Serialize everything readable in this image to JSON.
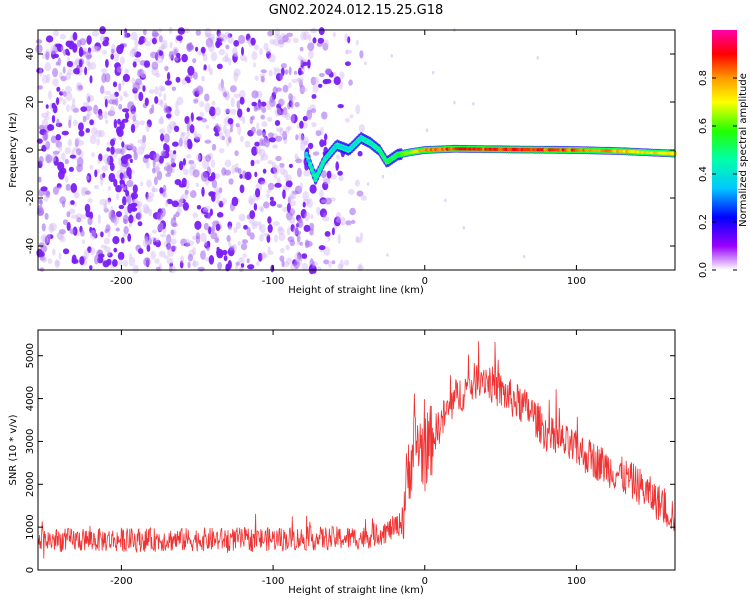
{
  "title": "GN02.2024.012.15.25.G18",
  "chart_data": [
    {
      "type": "heatmap",
      "title": "GN02.2024.012.15.25.G18",
      "xlabel": "Height of straight line (km)",
      "ylabel": "Frequency (Hz)",
      "xlim": [
        -255,
        165
      ],
      "ylim": [
        -50,
        50
      ],
      "xticks": [
        -200,
        -100,
        0,
        100
      ],
      "yticks": [
        -40,
        -20,
        0,
        20,
        40
      ],
      "colorbar": {
        "label": "Normalized spectral amplitude",
        "range": [
          0,
          1
        ],
        "ticks": [
          "0.0",
          "0.2",
          "0.4",
          "0.6",
          "0.8"
        ],
        "stops": [
          "#ffffff",
          "#8800ff",
          "#0000ff",
          "#00ffff",
          "#00ff00",
          "#ffff00",
          "#ff9900",
          "#ff0000",
          "#ff00cc"
        ]
      },
      "noise_region_x": [
        -255,
        -35
      ],
      "noise_amplitude": 0.22,
      "signal_ridge": [
        {
          "x": -78,
          "y": -2,
          "amp": 0.35
        },
        {
          "x": -72,
          "y": -12,
          "amp": 0.45
        },
        {
          "x": -66,
          "y": -4,
          "amp": 0.45
        },
        {
          "x": -58,
          "y": 2,
          "amp": 0.4
        },
        {
          "x": -50,
          "y": 0,
          "amp": 0.4
        },
        {
          "x": -42,
          "y": 5,
          "amp": 0.45
        },
        {
          "x": -36,
          "y": 3,
          "amp": 0.45
        },
        {
          "x": -30,
          "y": 0,
          "amp": 0.5
        },
        {
          "x": -25,
          "y": -5,
          "amp": 0.55
        },
        {
          "x": -18,
          "y": -2,
          "amp": 0.6
        },
        {
          "x": -10,
          "y": -1,
          "amp": 0.7
        },
        {
          "x": 0,
          "y": 0,
          "amp": 0.85
        },
        {
          "x": 20,
          "y": 0.5,
          "amp": 0.95
        },
        {
          "x": 60,
          "y": 0.2,
          "amp": 0.95
        },
        {
          "x": 100,
          "y": 0,
          "amp": 0.9
        },
        {
          "x": 130,
          "y": -0.5,
          "amp": 0.8
        },
        {
          "x": 165,
          "y": -1.5,
          "amp": 0.75
        }
      ]
    },
    {
      "type": "line",
      "xlabel": "Height of straight line (km)",
      "ylabel": "SNR (10 * v/v)",
      "xlim": [
        -255,
        165
      ],
      "ylim": [
        0,
        5600
      ],
      "xticks": [
        -200,
        -100,
        0,
        100
      ],
      "yticks": [
        0,
        1000,
        2000,
        3000,
        4000,
        5000
      ],
      "color": "#f03232",
      "series": [
        {
          "name": "SNR",
          "x": [
            -255,
            -200,
            -100,
            -40,
            -25,
            -15,
            -10,
            -5,
            0,
            10,
            20,
            30,
            38,
            45,
            55,
            70,
            80,
            100,
            120,
            140,
            150,
            165
          ],
          "y": [
            700,
            700,
            720,
            750,
            900,
            1100,
            2500,
            3000,
            2700,
            3400,
            4000,
            4300,
            4550,
            4300,
            4050,
            3700,
            3200,
            2800,
            2400,
            2000,
            1700,
            1250
          ],
          "noise_amplitude": 280
        }
      ]
    }
  ]
}
